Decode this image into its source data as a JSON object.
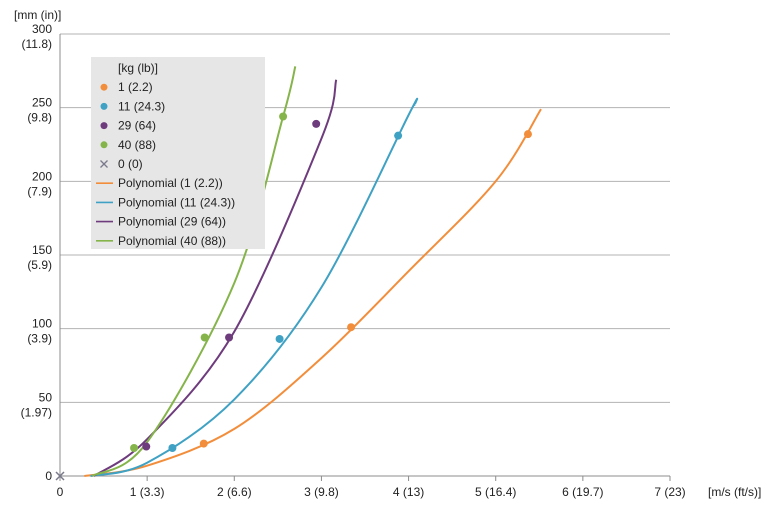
{
  "chart_data": {
    "type": "scatter",
    "xlabel": "[m/s (ft/s)]",
    "ylabel": "[mm (in)]",
    "xlim": [
      0,
      7
    ],
    "ylim": [
      0,
      300
    ],
    "grid": true,
    "legend_position": "top-left",
    "legend_title": "[kg (lb)]",
    "x_ticks": [
      {
        "value": 0,
        "label": "0"
      },
      {
        "value": 1,
        "label": "1 (3.3)"
      },
      {
        "value": 2,
        "label": "2 (6.6)"
      },
      {
        "value": 3,
        "label": "3 (9.8)"
      },
      {
        "value": 4,
        "label": "4 (13)"
      },
      {
        "value": 5,
        "label": "5 (16.4)"
      },
      {
        "value": 6,
        "label": "6 (19.7)"
      },
      {
        "value": 7,
        "label": "7 (23)"
      }
    ],
    "y_ticks": [
      {
        "value": 0,
        "label": "0",
        "sublabel": ""
      },
      {
        "value": 50,
        "label": "50",
        "sublabel": "(1.97)"
      },
      {
        "value": 100,
        "label": "100",
        "sublabel": "(3.9)"
      },
      {
        "value": 150,
        "label": "150",
        "sublabel": "(5.9)"
      },
      {
        "value": 200,
        "label": "200",
        "sublabel": "(7.9)"
      },
      {
        "value": 250,
        "label": "250",
        "sublabel": "(9.8)"
      },
      {
        "value": 300,
        "label": "300",
        "sublabel": "(11.8)"
      }
    ],
    "series": [
      {
        "name": "1 (2.2)",
        "color": "#f28e3b",
        "marker": "circle",
        "points": [
          [
            1.65,
            22
          ],
          [
            3.34,
            101
          ],
          [
            5.37,
            232
          ]
        ]
      },
      {
        "name": "11 (24.3)",
        "color": "#3fa1c3",
        "marker": "circle",
        "points": [
          [
            1.29,
            19
          ],
          [
            2.52,
            93
          ],
          [
            3.88,
            231
          ]
        ]
      },
      {
        "name": "29 (64)",
        "color": "#6e3b7d",
        "marker": "circle",
        "points": [
          [
            0.99,
            20
          ],
          [
            1.94,
            94
          ],
          [
            2.94,
            239
          ]
        ]
      },
      {
        "name": "40 (88)",
        "color": "#85b44a",
        "marker": "circle",
        "points": [
          [
            0.85,
            19
          ],
          [
            1.66,
            94
          ],
          [
            2.56,
            244
          ]
        ]
      },
      {
        "name": "0 (0)",
        "color": "#7a7a8c",
        "marker": "x",
        "points": [
          [
            0,
            0
          ]
        ]
      }
    ],
    "trendlines": [
      {
        "name": "Polynomial (1 (2.2))",
        "color": "#f28e3b",
        "points": [
          [
            0.28,
            0
          ],
          [
            1,
            7
          ],
          [
            2,
            32
          ],
          [
            3,
            80
          ],
          [
            4,
            139
          ],
          [
            5,
            200
          ],
          [
            5.52,
            249
          ]
        ]
      },
      {
        "name": "Polynomial (11 (24.3))",
        "color": "#3fa1c3",
        "points": [
          [
            0.35,
            0
          ],
          [
            1,
            9
          ],
          [
            2,
            52
          ],
          [
            3,
            128
          ],
          [
            4,
            245
          ],
          [
            4.07,
            252
          ]
        ]
      },
      {
        "name": "Polynomial (29 (64))",
        "color": "#6e3b7d",
        "points": [
          [
            0.39,
            0
          ],
          [
            1,
            25
          ],
          [
            2,
            98
          ],
          [
            3,
            229
          ],
          [
            3.17,
            269
          ]
        ]
      },
      {
        "name": "Polynomial (40 (88))",
        "color": "#85b44a",
        "points": [
          [
            0.37,
            0
          ],
          [
            1,
            23
          ],
          [
            2,
            131
          ],
          [
            2.56,
            244
          ],
          [
            2.7,
            278
          ]
        ]
      }
    ]
  }
}
